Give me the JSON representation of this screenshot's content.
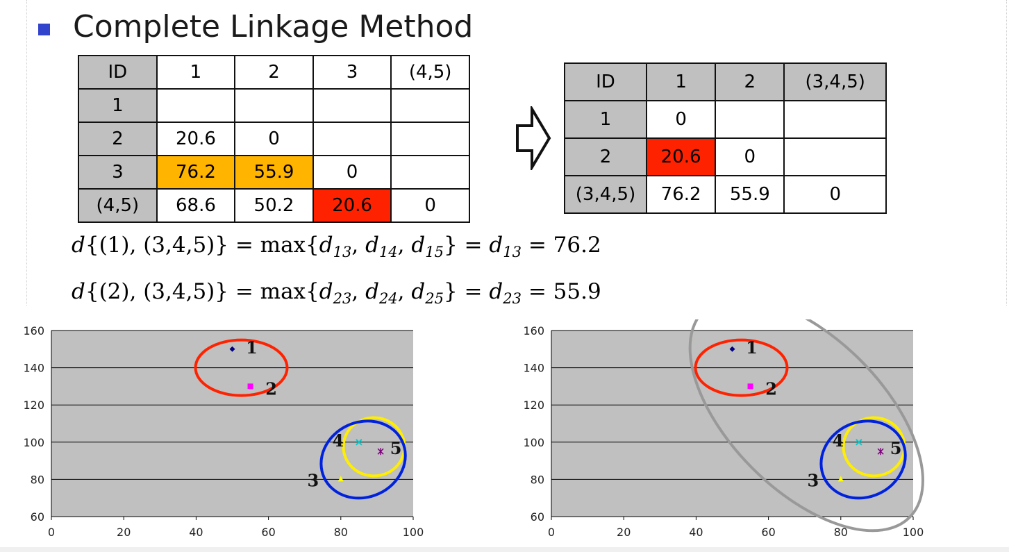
{
  "slide": {
    "title": "Complete Linkage Method"
  },
  "table_before": {
    "header": [
      "ID",
      "1",
      "2",
      "3",
      "(4,5)"
    ],
    "rows": [
      {
        "id": "1",
        "cells": [
          "",
          "",
          "",
          ""
        ]
      },
      {
        "id": "2",
        "cells": [
          "20.6",
          "0",
          "",
          ""
        ]
      },
      {
        "id": "3",
        "cells": [
          "76.2",
          "55.9",
          "0",
          ""
        ]
      },
      {
        "id": "(4,5)",
        "cells": [
          "68.6",
          "50.2",
          "20.6",
          "0"
        ]
      }
    ],
    "highlight_colors": {
      "orange": "#ffb400",
      "red": "#ff2200"
    }
  },
  "table_after": {
    "header": [
      "ID",
      "1",
      "2",
      "(3,4,5)"
    ],
    "rows": [
      {
        "id": "1",
        "cells": [
          "0",
          "",
          ""
        ]
      },
      {
        "id": "2",
        "cells": [
          "20.6",
          "0",
          ""
        ]
      },
      {
        "id": "(3,4,5)",
        "cells": [
          "76.2",
          "55.9",
          "0"
        ]
      }
    ]
  },
  "formulas": {
    "f1": {
      "lhs": "d{(1), (3,4,5)}",
      "terms": [
        "d13",
        "d14",
        "d15"
      ],
      "result_term": "d13",
      "value": "76.2"
    },
    "f2": {
      "lhs": "d{(2), (3,4,5)}",
      "terms": [
        "d23",
        "d24",
        "d25"
      ],
      "result_term": "d23",
      "value": "55.9"
    }
  },
  "chart_data": [
    {
      "type": "scatter",
      "xlim": [
        0,
        100
      ],
      "ylim": [
        60,
        160
      ],
      "x_ticks": [
        "0",
        "20",
        "40",
        "60",
        "80",
        "100"
      ],
      "y_ticks": [
        "60",
        "80",
        "100",
        "120",
        "140",
        "160"
      ],
      "grid": "horizontal",
      "points": [
        {
          "label": "1",
          "x": 50,
          "y": 150,
          "marker": "diamond",
          "color": "#000080"
        },
        {
          "label": "2",
          "x": 55,
          "y": 130,
          "marker": "square",
          "color": "#ff00ff"
        },
        {
          "label": "3",
          "x": 80,
          "y": 80,
          "marker": "triangle",
          "color": "#ffff00"
        },
        {
          "label": "4",
          "x": 85,
          "y": 100,
          "marker": "x",
          "color": "#00cccc"
        },
        {
          "label": "5",
          "x": 91,
          "y": 95,
          "marker": "star",
          "color": "#800080"
        }
      ],
      "clusters": [
        {
          "members": [
            "1",
            "2"
          ],
          "color": "#ff2200"
        },
        {
          "members": [
            "4",
            "5"
          ],
          "color": "#ffee00"
        },
        {
          "members": [
            "3",
            "4",
            "5"
          ],
          "color": "#0022dd"
        }
      ]
    },
    {
      "type": "scatter",
      "xlim": [
        0,
        100
      ],
      "ylim": [
        60,
        160
      ],
      "x_ticks": [
        "0",
        "20",
        "40",
        "60",
        "80",
        "100"
      ],
      "y_ticks": [
        "60",
        "80",
        "100",
        "120",
        "140",
        "160"
      ],
      "grid": "horizontal",
      "points": [
        {
          "label": "1",
          "x": 50,
          "y": 150,
          "marker": "diamond",
          "color": "#000080"
        },
        {
          "label": "2",
          "x": 55,
          "y": 130,
          "marker": "square",
          "color": "#ff00ff"
        },
        {
          "label": "3",
          "x": 80,
          "y": 80,
          "marker": "triangle",
          "color": "#ffff00"
        },
        {
          "label": "4",
          "x": 85,
          "y": 100,
          "marker": "x",
          "color": "#00cccc"
        },
        {
          "label": "5",
          "x": 91,
          "y": 95,
          "marker": "star",
          "color": "#800080"
        }
      ],
      "clusters": [
        {
          "members": [
            "1",
            "2"
          ],
          "color": "#ff2200"
        },
        {
          "members": [
            "4",
            "5"
          ],
          "color": "#ffee00"
        },
        {
          "members": [
            "3",
            "4",
            "5"
          ],
          "color": "#0022dd"
        },
        {
          "members": [
            "1",
            "2",
            "3",
            "4",
            "5"
          ],
          "color": "#999999"
        }
      ]
    }
  ]
}
